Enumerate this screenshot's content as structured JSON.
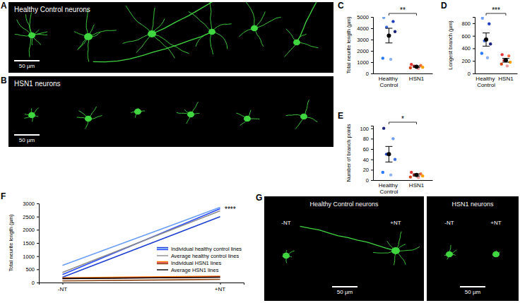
{
  "chart_data": [
    {
      "panel": "C",
      "type": "dot",
      "ylabel": "Total neurite length (µm)",
      "categories": [
        "Healthy Control",
        "HSN1"
      ],
      "ylim": [
        0,
        5000
      ],
      "yticks": [
        0,
        1000,
        2000,
        3000,
        4000,
        5000
      ],
      "annotation": "**",
      "groups": [
        {
          "values": [
            4950,
            4600,
            4100,
            3700,
            1350,
            1250
          ],
          "colors": [
            "#6f9ff2",
            "#1f3fbf",
            "#3d6fe0",
            "#1a237e",
            "#2979ff",
            "#8fb2f0"
          ],
          "mean": 3350,
          "error": 650
        },
        {
          "values": [
            800,
            700,
            650,
            550,
            500,
            450
          ],
          "colors": [
            "#e53935",
            "#ff7043",
            "#c62828",
            "#ffa000",
            "#d84315",
            "#ef9a9a"
          ],
          "mean": 600,
          "error": 60
        }
      ]
    },
    {
      "panel": "D",
      "type": "dot",
      "ylabel": "Longest branch (µm)",
      "categories": [
        "Healthy Control",
        "HSN1"
      ],
      "ylim": [
        0,
        900
      ],
      "yticks": [
        0,
        200,
        400,
        600,
        800
      ],
      "annotation": "***",
      "groups": [
        {
          "values": [
            880,
            790,
            520,
            470,
            320,
            250
          ],
          "colors": [
            "#6f9ff2",
            "#1f3fbf",
            "#3d6fe0",
            "#1a237e",
            "#2979ff",
            "#8fb2f0"
          ],
          "mean": 540,
          "error": 105
        },
        {
          "values": [
            300,
            280,
            210,
            180,
            150,
            120
          ],
          "colors": [
            "#e53935",
            "#ff7043",
            "#c62828",
            "#ffa000",
            "#d84315",
            "#ef9a9a"
          ],
          "mean": 210,
          "error": 30
        }
      ]
    },
    {
      "panel": "E",
      "type": "dot",
      "ylabel": "Number of branch points",
      "categories": [
        "Healthy Control",
        "HSN1"
      ],
      "ylim": [
        0,
        105
      ],
      "yticks": [
        0,
        20,
        40,
        60,
        80,
        100
      ],
      "annotation": "*",
      "groups": [
        {
          "values": [
            100,
            80,
            50,
            40,
            15,
            10
          ],
          "colors": [
            "#1a237e",
            "#6f9ff2",
            "#1f3fbf",
            "#3d6fe0",
            "#2979ff",
            "#8fb2f0"
          ],
          "mean": 50,
          "error": 15
        },
        {
          "values": [
            15,
            12,
            10,
            8,
            6,
            5
          ],
          "colors": [
            "#e53935",
            "#ff7043",
            "#c62828",
            "#ffa000",
            "#d84315",
            "#ef9a9a"
          ],
          "mean": 10,
          "error": 2
        }
      ]
    },
    {
      "panel": "F",
      "type": "line",
      "ylabel": "Total neurite length (µm)",
      "categories": [
        "-NT",
        "+NT"
      ],
      "ylim": [
        0,
        3000
      ],
      "yticks": [
        0,
        500,
        1000,
        1500,
        2000,
        2500,
        3000
      ],
      "annotation": "****",
      "legend": "right",
      "series": [
        {
          "name": "Individual healthy control lines",
          "color": "#1f3fd0",
          "values": [
            200,
            2500
          ]
        },
        {
          "name": "Individual healthy control lines",
          "color": "#6b9ef5",
          "values": [
            650,
            2850
          ]
        },
        {
          "name": "Individual healthy control lines",
          "color": "#2b4cff",
          "values": [
            300,
            2800
          ]
        },
        {
          "name": "Average healthy control lines",
          "color": "#8c8c8c",
          "values": [
            380,
            2720
          ]
        },
        {
          "name": "Individual HSN1 lines",
          "color": "#ff7f0e",
          "values": [
            180,
            240
          ]
        },
        {
          "name": "Individual HSN1 lines",
          "color": "#d62728",
          "values": [
            150,
            210
          ]
        },
        {
          "name": "Individual HSN1 lines",
          "color": "#8b4513",
          "values": [
            60,
            120
          ]
        },
        {
          "name": "Average HSN1 lines",
          "color": "#000000",
          "values": [
            150,
            200
          ]
        }
      ]
    }
  ],
  "images": [
    {
      "panel": "A",
      "label": "Healthy Control neurons",
      "scale_bar": "50 µm"
    },
    {
      "panel": "B",
      "label": "HSN1 neurons",
      "scale_bar": "50 µm"
    },
    {
      "panel": "G",
      "images": [
        {
          "label": "Healthy Control neurons",
          "conditions": [
            "-NT",
            "+NT"
          ],
          "scale_bar": "50 µm"
        },
        {
          "label": "HSN1 neurons",
          "conditions": [
            "-NT",
            "+NT"
          ],
          "scale_bar": "50 µm"
        }
      ]
    }
  ]
}
